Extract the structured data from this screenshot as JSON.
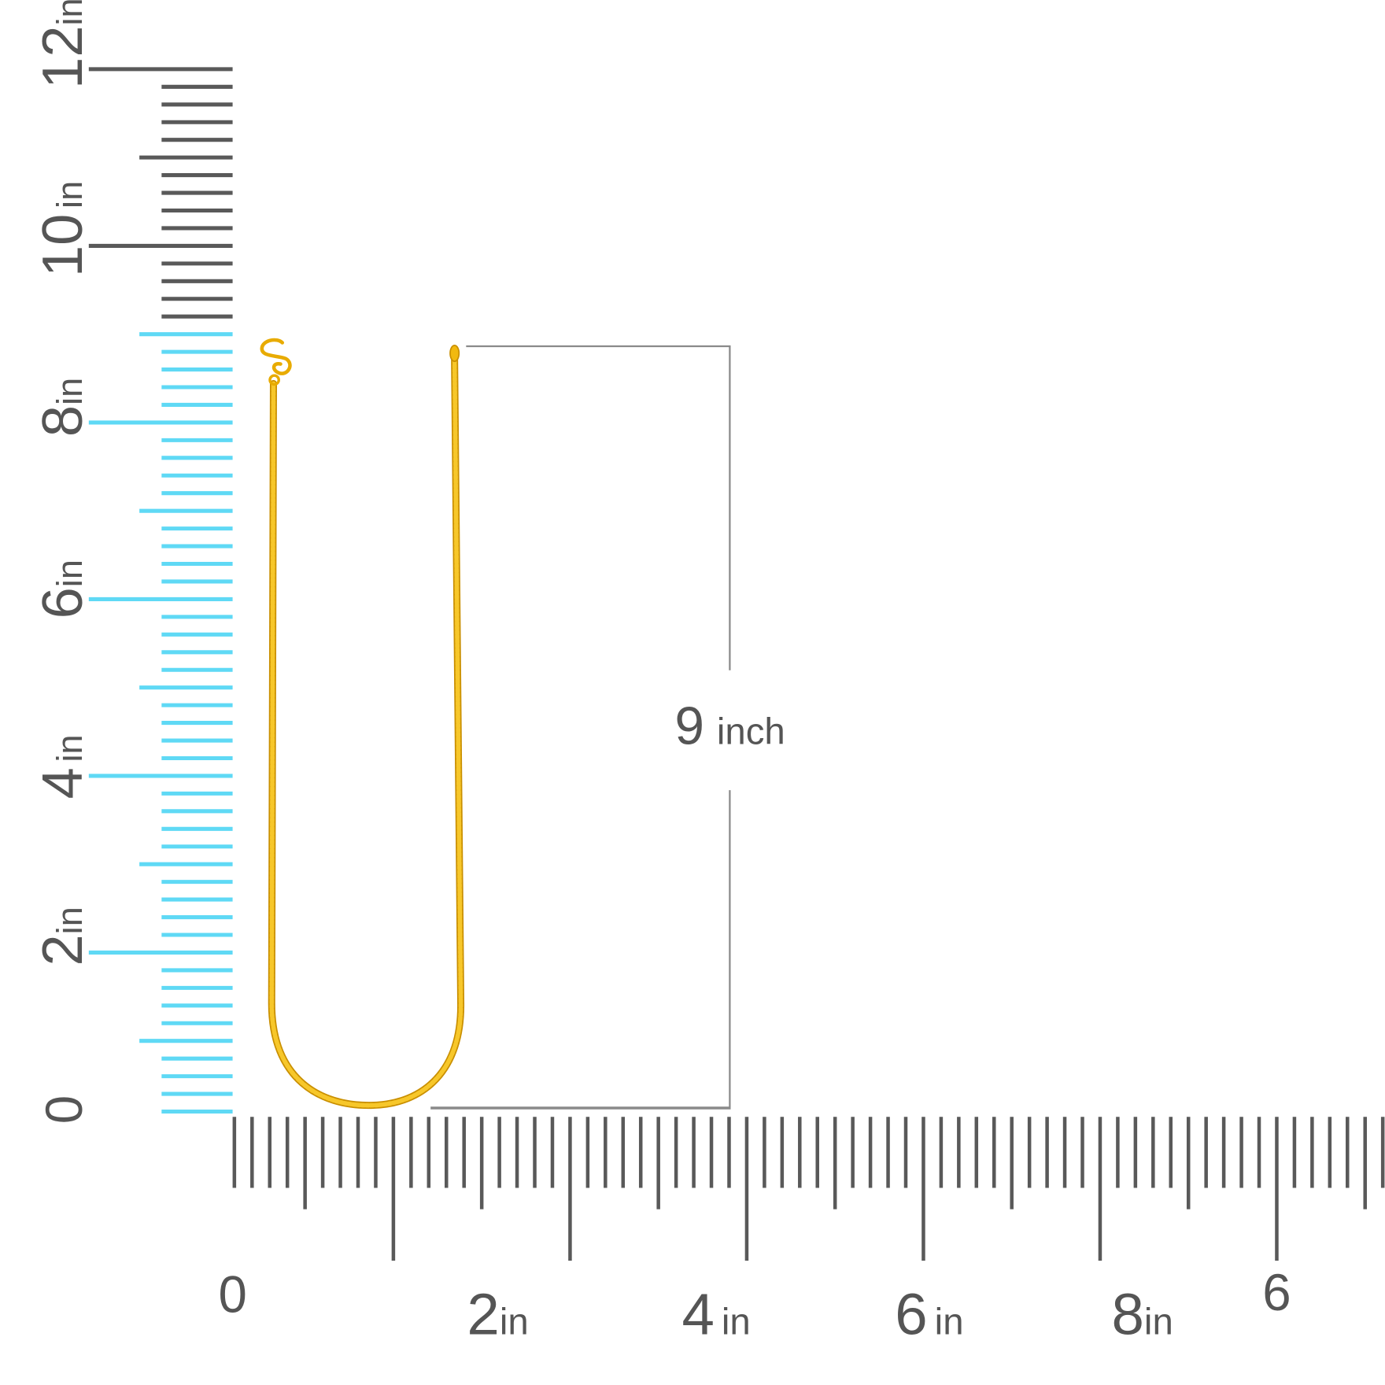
{
  "colors": {
    "ruler_grey": "#595959",
    "ruler_blue": "#5fd9f5",
    "chain_gold": "#f2b90f",
    "chain_shadow": "#c98f00",
    "dimension_line": "#8a8a8a",
    "text": "#555555"
  },
  "vertical_ruler": {
    "highlighted_length_in": 8.8,
    "labels": [
      {
        "num": "0",
        "unit": ""
      },
      {
        "num": "2",
        "unit": "in"
      },
      {
        "num": "4",
        "unit": "in"
      },
      {
        "num": "6",
        "unit": "in"
      },
      {
        "num": "8",
        "unit": "in"
      },
      {
        "num": "10",
        "unit": "in"
      },
      {
        "num": "12",
        "unit": "in"
      }
    ]
  },
  "horizontal_ruler": {
    "labels": [
      {
        "num": "0",
        "unit": ""
      },
      {
        "num": "2",
        "unit": "in"
      },
      {
        "num": "4",
        "unit": "in"
      },
      {
        "num": "6",
        "unit": "in"
      },
      {
        "num": "8",
        "unit": "in"
      },
      {
        "num": "6",
        "unit": ""
      }
    ]
  },
  "dimension": {
    "value": "9",
    "unit": "inch"
  },
  "product": {
    "icon": "gold-chain-with-s-hook-clasp"
  }
}
